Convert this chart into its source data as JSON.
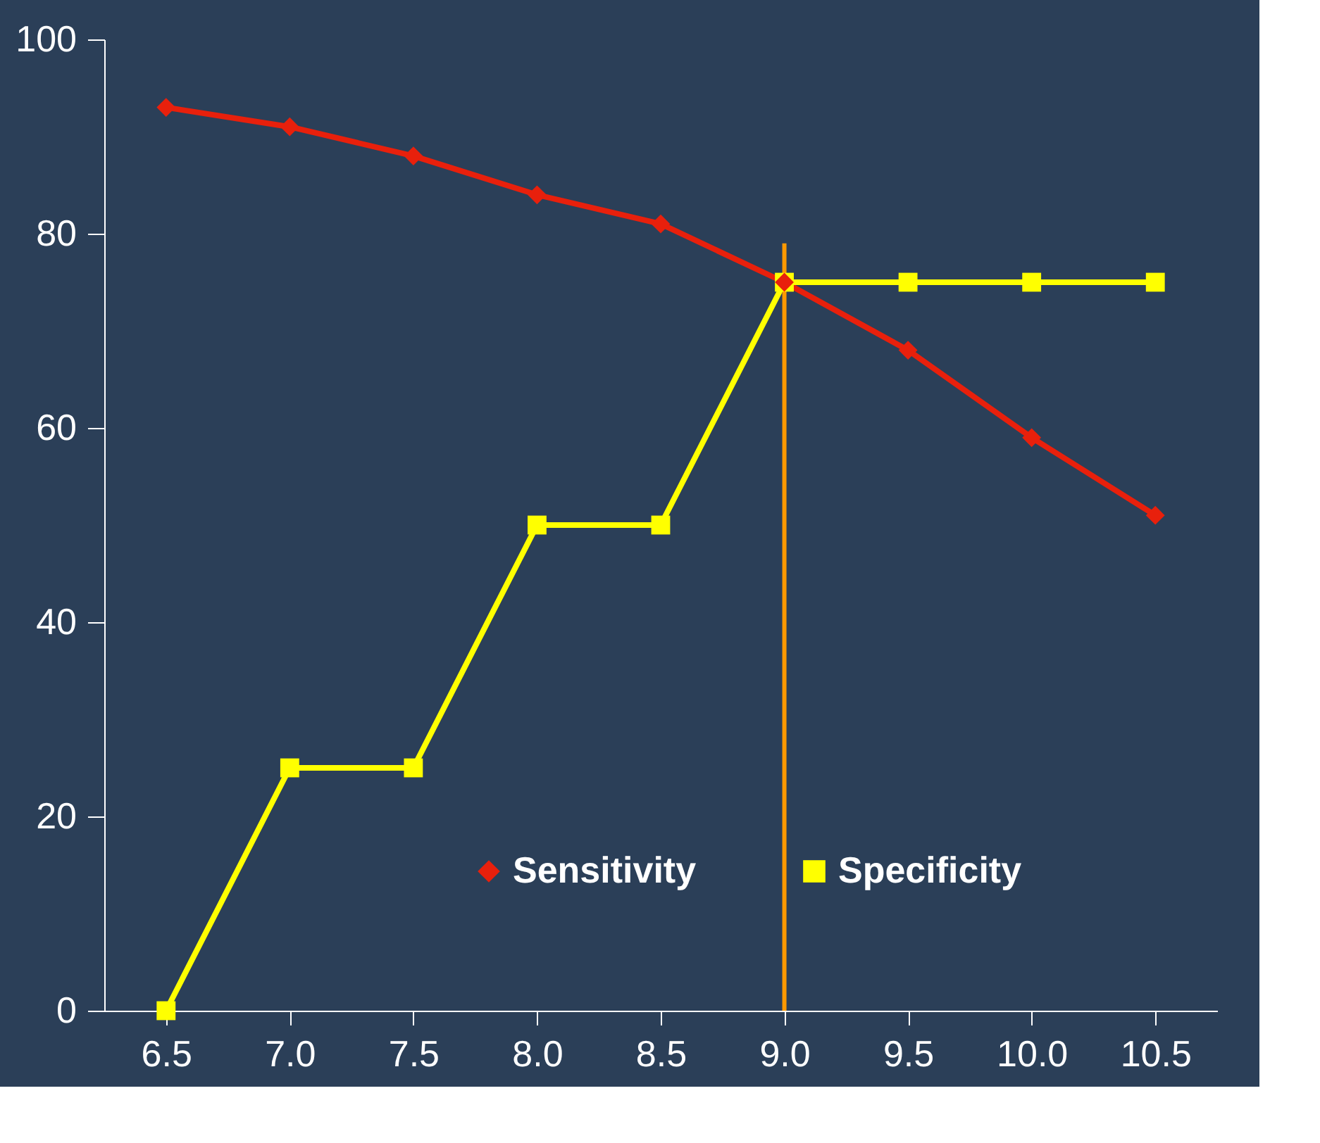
{
  "chart_data": {
    "type": "line",
    "categories": [
      "6.5",
      "7.0",
      "7.5",
      "8.0",
      "8.5",
      "9.0",
      "9.5",
      "10.0",
      "10.5"
    ],
    "series": [
      {
        "name": "Sensitivity",
        "color": "#e8200c",
        "marker": "diamond",
        "values": [
          93,
          91,
          88,
          84,
          81,
          75,
          68,
          59,
          51
        ]
      },
      {
        "name": "Specificity",
        "color": "#ffff00",
        "marker": "square",
        "values": [
          0,
          25,
          25,
          50,
          50,
          75,
          75,
          75,
          75
        ]
      }
    ],
    "ylim": [
      0,
      100
    ],
    "yticks": [
      0,
      20,
      40,
      60,
      80,
      100
    ],
    "grid": false,
    "legend": "bottom",
    "line_style": "solid",
    "ref_lines": [
      {
        "axis": "x",
        "value": "9.0",
        "color": "#ff9900"
      }
    ]
  }
}
